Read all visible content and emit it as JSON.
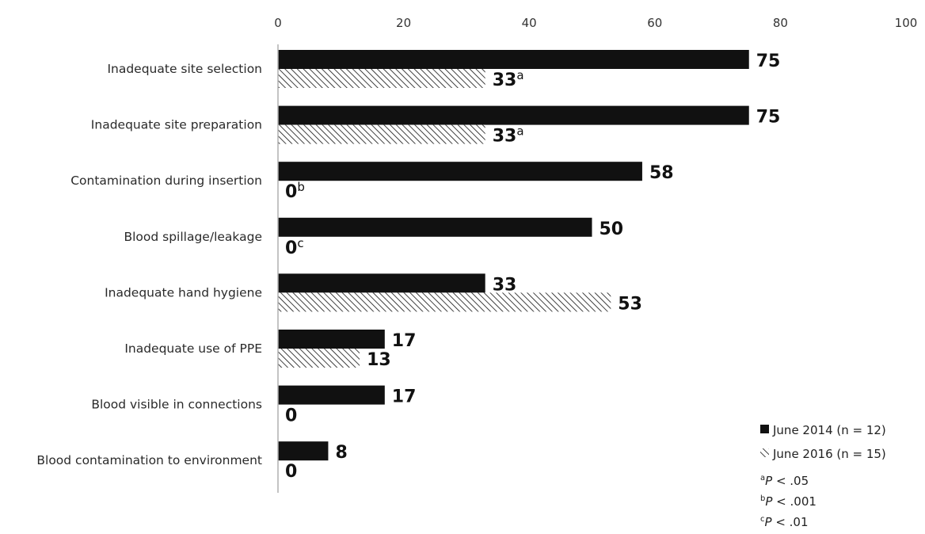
{
  "chart_data": {
    "type": "bar",
    "orientation": "horizontal",
    "xlim": [
      0,
      100
    ],
    "xticks": [
      "0",
      "20",
      "40",
      "60",
      "80",
      "100"
    ],
    "axis_position": "top",
    "grid": false,
    "categories": [
      "Inadequate site selection",
      "Inadequate site preparation",
      "Contamination during insertion",
      "Blood spillage/leakage",
      "Inadequate hand hygiene",
      "Inadequate use of PPE",
      "Blood visible in connections",
      "Blood contamination to environment"
    ],
    "series": [
      {
        "name": "June 2014 (n = 12)",
        "pattern": "solid",
        "color": "#111111",
        "values": [
          75,
          75,
          58,
          50,
          33,
          17,
          17,
          8
        ],
        "labels": [
          "75",
          "75",
          "58",
          "50",
          "33",
          "17",
          "17",
          "8"
        ],
        "superscripts": [
          "",
          "",
          "",
          "",
          "",
          "",
          "",
          ""
        ]
      },
      {
        "name": "June 2016 (n = 15)",
        "pattern": "diagonal-hatch",
        "color": "#111111",
        "values": [
          33,
          33,
          0,
          0,
          53,
          13,
          0,
          0
        ],
        "labels": [
          "33",
          "33",
          "0",
          "0",
          "53",
          "13",
          "0",
          "0"
        ],
        "superscripts": [
          "a",
          "a",
          "b",
          "c",
          "",
          "",
          "",
          ""
        ]
      }
    ],
    "legend_position": "bottom-right",
    "footnotes": [
      {
        "mark": "a",
        "p": "P",
        "rest": " < .05"
      },
      {
        "mark": "b",
        "p": "P",
        "rest": " < .001"
      },
      {
        "mark": "c",
        "p": "P",
        "rest": " < .01"
      }
    ]
  }
}
